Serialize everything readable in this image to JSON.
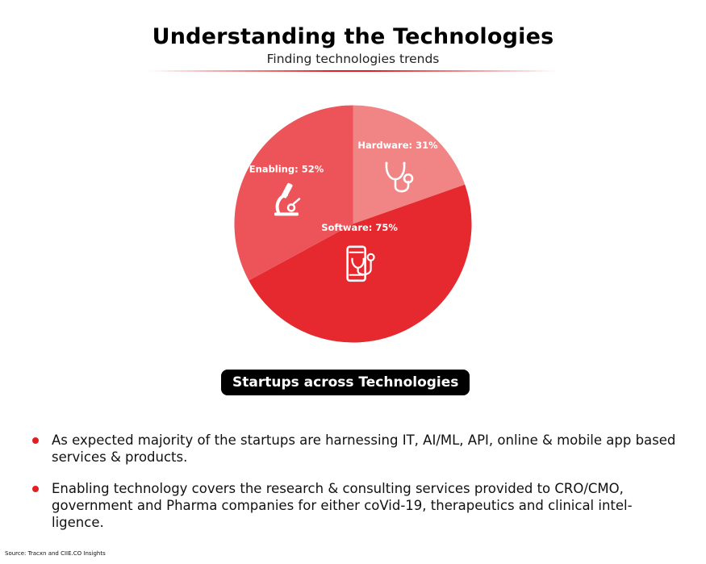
{
  "title": "Understanding the Technologies",
  "subtitle": "Finding technologies trends",
  "chart_data": {
    "type": "pie",
    "title": "Understanding the Technologies",
    "subtitle": "Finding technologies trends",
    "caption": "Startups across Technologies",
    "slices": [
      {
        "label": "Hardware",
        "value": 31,
        "display": "Hardware: 31%",
        "color": "#f18484",
        "icon": "stethoscope-icon"
      },
      {
        "label": "Software",
        "value": 75,
        "display": "Software: 75%",
        "color": "#e5292f",
        "icon": "mobile-stethoscope-icon"
      },
      {
        "label": "Enabling",
        "value": 52,
        "display": "Enabling: 52%",
        "color": "#ec5459",
        "icon": "microscope-icon"
      }
    ]
  },
  "bullets": [
    "As expected majority of the startups are harnessing IT, AI/ML, API, online & mobile app based services & products.",
    "Enabling technology covers the research & consulting services provided to CRO/CMO, government and Pharma companies for either coVid-19, therapeutics and clinical intel-ligence."
  ],
  "source": "Source: Tracxn and CIIE.CO Insights",
  "colors": {
    "accent": "#e31e24",
    "caption_bg": "#000000"
  }
}
